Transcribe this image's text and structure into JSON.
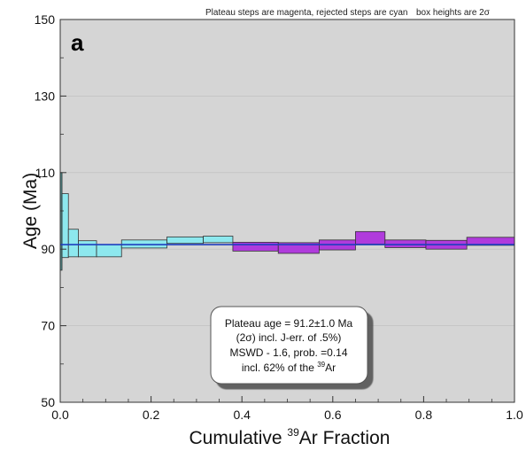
{
  "chart_data": {
    "type": "bar",
    "panel_label": "a",
    "notes": {
      "steps": "Plateau steps are magenta, rejected steps are cyan",
      "heights_pre": "box heights are 2",
      "heights_sym": "σ"
    },
    "xlabel": {
      "pre": "Cumulative ",
      "sup": "39",
      "post": "Ar Fraction"
    },
    "ylabel": "Age (Ma)",
    "xlim": [
      0.0,
      1.0
    ],
    "ylim": [
      50,
      150
    ],
    "xticks": [
      0.0,
      0.2,
      0.4,
      0.6,
      0.8,
      1.0
    ],
    "xtick_labels": [
      "0.0",
      "0.2",
      "0.4",
      "0.6",
      "0.8",
      "1.0"
    ],
    "yticks": [
      50,
      70,
      90,
      110,
      130,
      150
    ],
    "ytick_labels": [
      "50",
      "70",
      "90",
      "110",
      "130",
      "150"
    ],
    "colors": {
      "plateau": "#b03bdc",
      "rejected": "#8de8ee",
      "plateau_line": "#1e3fbf",
      "plot_background": "#d5d5d5",
      "first_step": "#4f8f8f"
    },
    "plateau_age": 91.2,
    "steps": [
      {
        "x0": 0.0,
        "x1": 0.004,
        "lo": 84.5,
        "hi": 110.0,
        "status": "rejected"
      },
      {
        "x0": 0.004,
        "x1": 0.018,
        "lo": 87.8,
        "hi": 104.5,
        "status": "rejected"
      },
      {
        "x0": 0.018,
        "x1": 0.04,
        "lo": 88.0,
        "hi": 95.2,
        "status": "rejected"
      },
      {
        "x0": 0.04,
        "x1": 0.08,
        "lo": 88.0,
        "hi": 92.2,
        "status": "rejected"
      },
      {
        "x0": 0.08,
        "x1": 0.135,
        "lo": 88.0,
        "hi": 91.2,
        "status": "rejected"
      },
      {
        "x0": 0.135,
        "x1": 0.235,
        "lo": 90.3,
        "hi": 92.4,
        "status": "rejected"
      },
      {
        "x0": 0.235,
        "x1": 0.315,
        "lo": 91.5,
        "hi": 93.2,
        "status": "rejected"
      },
      {
        "x0": 0.315,
        "x1": 0.38,
        "lo": 91.7,
        "hi": 93.4,
        "status": "rejected"
      },
      {
        "x0": 0.38,
        "x1": 0.48,
        "lo": 89.5,
        "hi": 91.8,
        "status": "plateau"
      },
      {
        "x0": 0.48,
        "x1": 0.57,
        "lo": 88.9,
        "hi": 91.7,
        "status": "plateau"
      },
      {
        "x0": 0.57,
        "x1": 0.65,
        "lo": 89.8,
        "hi": 92.4,
        "status": "plateau"
      },
      {
        "x0": 0.65,
        "x1": 0.715,
        "lo": 91.3,
        "hi": 94.6,
        "status": "plateau"
      },
      {
        "x0": 0.715,
        "x1": 0.805,
        "lo": 90.4,
        "hi": 92.4,
        "status": "plateau"
      },
      {
        "x0": 0.805,
        "x1": 0.895,
        "lo": 90.0,
        "hi": 92.3,
        "status": "plateau"
      },
      {
        "x0": 0.895,
        "x1": 1.0,
        "lo": 91.0,
        "hi": 93.1,
        "status": "plateau"
      }
    ],
    "annotation": {
      "line1": "Plateau age = 91.2±1.0 Ma",
      "line2_pre": "(2",
      "line2_sym": "σ",
      "line2_post": ") incl. J-err. of .5%)",
      "line3": "MSWD - 1.6, prob. =0.14",
      "line4_pre": "incl. 62% of the ",
      "line4_sup": "39",
      "line4_post": "Ar"
    }
  }
}
